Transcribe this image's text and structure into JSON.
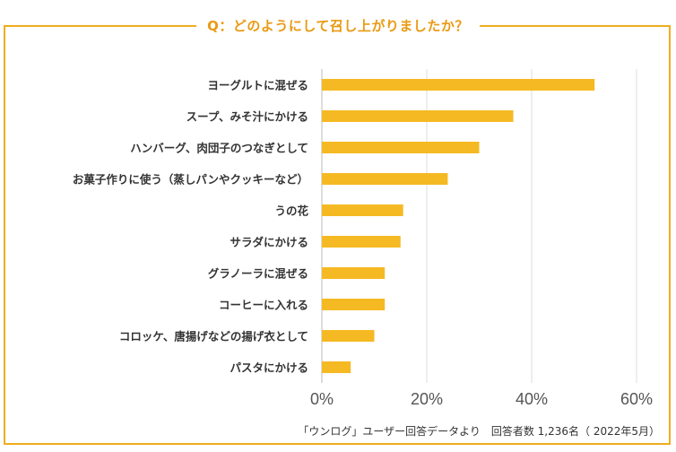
{
  "title": "Q：どのようにして召し上がりましたか？",
  "source_note": "「ウンログ」ユーザー回答データより　回答者数 1,236名（ 2022年5月）",
  "colors": {
    "bar": "#f5b923",
    "frame": "#f0ad1e",
    "title": "#e99a12",
    "grid": "#dddddd",
    "label": "#333333",
    "tick": "#555555"
  },
  "chart_data": {
    "type": "bar",
    "orientation": "horizontal",
    "categories": [
      "ヨーグルトに混ぜる",
      "スープ、みそ汁にかける",
      "ハンバーグ、肉団子のつなぎとして",
      "お菓子作りに使う（蒸しパンやクッキーなど）",
      "うの花",
      "サラダにかける",
      "グラノーラに混ぜる",
      "コーヒーに入れる",
      "コロッケ、唐揚げなどの揚げ衣として",
      "パスタにかける"
    ],
    "values": [
      52,
      36.5,
      30,
      24,
      15.5,
      15,
      12,
      12,
      10,
      5.5
    ],
    "xlim": [
      0,
      60
    ],
    "xticks": [
      0,
      20,
      40,
      60
    ],
    "tick_labels": [
      "0%",
      "20%",
      "40%",
      "60%"
    ],
    "grid": true
  }
}
